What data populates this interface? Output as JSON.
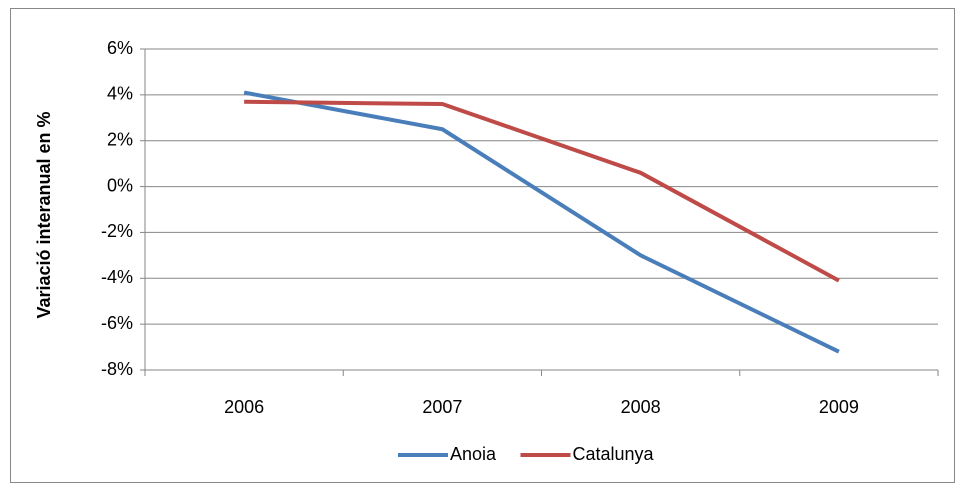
{
  "chart_data": {
    "type": "line",
    "y_label": "Variació interanual en %",
    "categories": [
      "2006",
      "2007",
      "2008",
      "2009"
    ],
    "series": [
      {
        "name": "Anoia",
        "color": "#4a7ebb",
        "values": [
          4.1,
          2.5,
          -3.0,
          -7.2
        ]
      },
      {
        "name": "Catalunya",
        "color": "#be4b48",
        "values": [
          3.7,
          3.6,
          0.6,
          -4.1
        ]
      }
    ],
    "ylim": [
      -8,
      6
    ],
    "yticks": [
      {
        "value": -8,
        "label": "-8%"
      },
      {
        "value": -6,
        "label": "-6%"
      },
      {
        "value": -4,
        "label": "-4%"
      },
      {
        "value": -2,
        "label": "-2%"
      },
      {
        "value": 0,
        "label": "0%"
      },
      {
        "value": 2,
        "label": "2%"
      },
      {
        "value": 4,
        "label": "4%"
      },
      {
        "value": 6,
        "label": "6%"
      }
    ],
    "grid": true,
    "legend": "bottom"
  }
}
